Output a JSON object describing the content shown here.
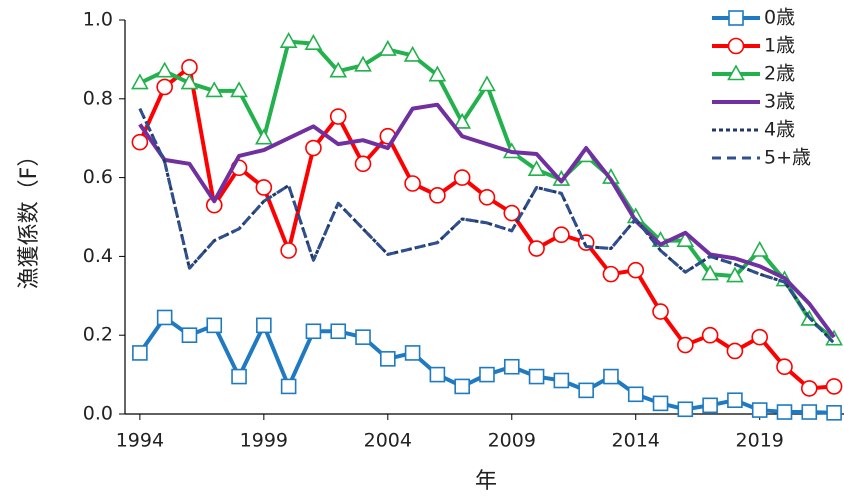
{
  "chart_data": {
    "type": "line",
    "x": [
      1994,
      1995,
      1996,
      1997,
      1998,
      1999,
      2000,
      2001,
      2002,
      2003,
      2004,
      2005,
      2006,
      2007,
      2008,
      2009,
      2010,
      2011,
      2012,
      2013,
      2014,
      2015,
      2016,
      2017,
      2018,
      2019,
      2020,
      2021,
      2022
    ],
    "xlabel": "年",
    "ylabel": "漁獲係数（F）",
    "xlim": [
      1993.4,
      2022.4
    ],
    "xticks": [
      1994,
      1999,
      2004,
      2009,
      2014,
      2019
    ],
    "ylim": [
      0,
      1
    ],
    "yticks": [
      {
        "value": 0,
        "label": "0.0"
      },
      {
        "value": 0.2,
        "label": "0.2"
      },
      {
        "value": 0.4,
        "label": "0.4"
      },
      {
        "value": 0.6,
        "label": "0.6"
      },
      {
        "value": 0.8,
        "label": "0.8"
      },
      {
        "value": 1,
        "label": "1.0"
      }
    ],
    "legend": "top-right",
    "series": [
      {
        "name": "0歳",
        "color": "#1f7ac2",
        "marker": "square",
        "dash": "solid",
        "values": [
          0.155,
          0.245,
          0.2,
          0.225,
          0.095,
          0.225,
          0.07,
          0.21,
          0.21,
          0.195,
          0.14,
          0.155,
          0.1,
          0.07,
          0.1,
          0.12,
          0.095,
          0.085,
          0.06,
          0.095,
          0.05,
          0.027,
          0.012,
          0.022,
          0.035,
          0.01,
          0.005,
          0.005,
          0.003
        ]
      },
      {
        "name": "1歳",
        "color": "#ff0000",
        "marker": "circle",
        "dash": "solid",
        "values": [
          0.69,
          0.83,
          0.88,
          0.53,
          0.625,
          0.575,
          0.415,
          0.675,
          0.755,
          0.635,
          0.705,
          0.585,
          0.555,
          0.6,
          0.55,
          0.51,
          0.42,
          0.455,
          0.435,
          0.355,
          0.365,
          0.26,
          0.175,
          0.2,
          0.16,
          0.195,
          0.12,
          0.065,
          0.07
        ]
      },
      {
        "name": "2歳",
        "color": "#22b14c",
        "marker": "triangle",
        "dash": "solid",
        "values": [
          0.84,
          0.87,
          0.84,
          0.82,
          0.82,
          0.7,
          0.945,
          0.94,
          0.87,
          0.885,
          0.925,
          0.91,
          0.86,
          0.74,
          0.835,
          0.665,
          0.62,
          0.595,
          0.655,
          0.6,
          0.5,
          0.44,
          0.44,
          0.355,
          0.35,
          0.415,
          0.34,
          0.24,
          0.19
        ]
      },
      {
        "name": "3歳",
        "color": "#7030a0",
        "marker": "none",
        "dash": "solid",
        "values": [
          0.735,
          0.645,
          0.635,
          0.54,
          0.655,
          0.67,
          0.7,
          0.73,
          0.685,
          0.695,
          0.675,
          0.775,
          0.785,
          0.705,
          0.685,
          0.665,
          0.66,
          0.59,
          0.675,
          0.595,
          0.49,
          0.43,
          0.46,
          0.405,
          0.395,
          0.375,
          0.345,
          0.28,
          0.195
        ]
      },
      {
        "name": "4歳",
        "color": "#1f3864",
        "marker": "none",
        "dash": "dot",
        "values": [
          0.775,
          0.64,
          0.37,
          0.44,
          0.47,
          0.54,
          0.58,
          0.39,
          0.535,
          0.47,
          0.405,
          0.42,
          0.435,
          0.495,
          0.485,
          0.465,
          0.575,
          0.56,
          0.425,
          0.42,
          0.495,
          0.415,
          0.36,
          0.4,
          0.38,
          0.355,
          0.335,
          0.245,
          0.18
        ]
      },
      {
        "name": "5+歳",
        "color": "#2f4f8f",
        "marker": "none",
        "dash": "dash",
        "values": [
          0.775,
          0.64,
          0.37,
          0.44,
          0.47,
          0.54,
          0.58,
          0.39,
          0.535,
          0.47,
          0.405,
          0.42,
          0.435,
          0.495,
          0.485,
          0.465,
          0.575,
          0.56,
          0.425,
          0.42,
          0.495,
          0.415,
          0.36,
          0.4,
          0.38,
          0.355,
          0.335,
          0.245,
          0.18
        ]
      }
    ]
  }
}
